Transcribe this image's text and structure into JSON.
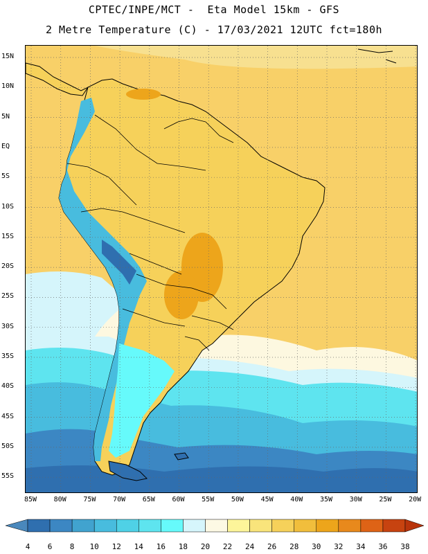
{
  "title_line1": "CPTEC/INPE/MCT -  Eta Model 15km - GFS",
  "title_line2": "2 Metre Temperature (C) - 17/03/2021 12UTC fct=180h",
  "lat_labels": [
    "15N",
    "10N",
    "5N",
    "EQ",
    "5S",
    "10S",
    "15S",
    "20S",
    "25S",
    "30S",
    "35S",
    "40S",
    "45S",
    "50S",
    "55S"
  ],
  "lon_labels": [
    "85W",
    "80W",
    "75W",
    "70W",
    "65W",
    "60W",
    "55W",
    "50W",
    "45W",
    "40W",
    "35W",
    "30W",
    "25W",
    "20W"
  ],
  "colorbar": {
    "labels": [
      "4",
      "6",
      "8",
      "10",
      "12",
      "14",
      "16",
      "18",
      "20",
      "22",
      "24",
      "26",
      "28",
      "30",
      "32",
      "34",
      "36",
      "38"
    ],
    "colors": [
      "#4a88bc",
      "#2f6faf",
      "#3c87c3",
      "#41a3cf",
      "#48bcde",
      "#4fd1e6",
      "#5ee4ef",
      "#66fafb",
      "#d6f6fc",
      "#fdf9e4",
      "#fdf59a",
      "#f9e47b",
      "#f6d15a",
      "#f1be3c",
      "#eda51b",
      "#e8891c",
      "#de6316",
      "#c74310",
      "#b8340b"
    ]
  },
  "map_layers": {
    "ocean_warm": "#f8d068",
    "ocean_mid": "#f7e090",
    "ocean_pale": "#fdf8e0",
    "ocean_cool": "#d5f5fb",
    "ocean_cyan": "#5ee4ef",
    "ocean_light_blue": "#48bcde",
    "ocean_mid_blue": "#3c87c3",
    "ocean_deep_blue": "#2f6faf",
    "land": "#f6d15a",
    "land_hot": "#eda51b",
    "andes": "#48bcde",
    "andes_high": "#2f6faf",
    "patagonia": "#66fafb"
  }
}
